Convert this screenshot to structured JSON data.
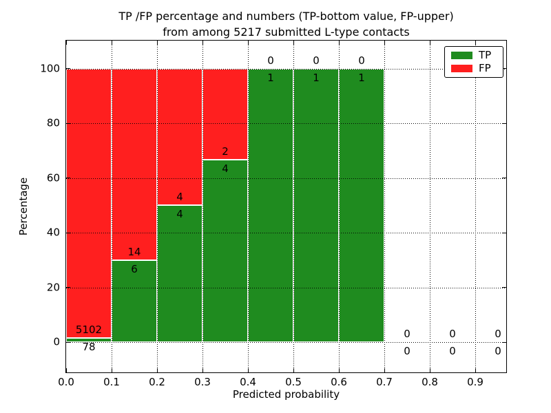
{
  "chart_data": {
    "type": "bar",
    "stacked": true,
    "normalized": "percent",
    "title_line1": "TP /FP percentage and numbers (TP-bottom value, FP-upper)",
    "title_line2": "from among 5217 submitted L-type contacts",
    "xlabel": "Predicted probability",
    "ylabel": "Percentage",
    "x_ticks": [
      "0.0",
      "0.1",
      "0.2",
      "0.3",
      "0.4",
      "0.5",
      "0.6",
      "0.7",
      "0.8",
      "0.9"
    ],
    "y_ticks": [
      "0",
      "20",
      "40",
      "60",
      "80",
      "100"
    ],
    "xlim": [
      0.0,
      0.97
    ],
    "ylim": [
      -11,
      110
    ],
    "grid": "dotted",
    "bin_width": 0.1,
    "categories": [
      "0.0-0.1",
      "0.1-0.2",
      "0.2-0.3",
      "0.3-0.4",
      "0.4-0.5",
      "0.5-0.6",
      "0.6-0.7",
      "0.7-0.8",
      "0.8-0.9",
      "0.9-1.0"
    ],
    "series": [
      {
        "name": "TP",
        "color": "#1f8b1f",
        "values": [
          78,
          6,
          4,
          4,
          1,
          1,
          1,
          0,
          0,
          0
        ]
      },
      {
        "name": "FP",
        "color": "#ff1f1f",
        "values": [
          5102,
          14,
          4,
          2,
          0,
          0,
          0,
          0,
          0,
          0
        ]
      }
    ],
    "tp_percent_of_bin": [
      1.51,
      30.0,
      50.0,
      66.67,
      100.0,
      100.0,
      100.0,
      null,
      null,
      null
    ],
    "total_contacts": 5217,
    "legend": {
      "position": "upper right",
      "entries": [
        {
          "label": "TP",
          "color": "#1f8b1f"
        },
        {
          "label": "FP",
          "color": "#ff1f1f"
        }
      ]
    }
  }
}
